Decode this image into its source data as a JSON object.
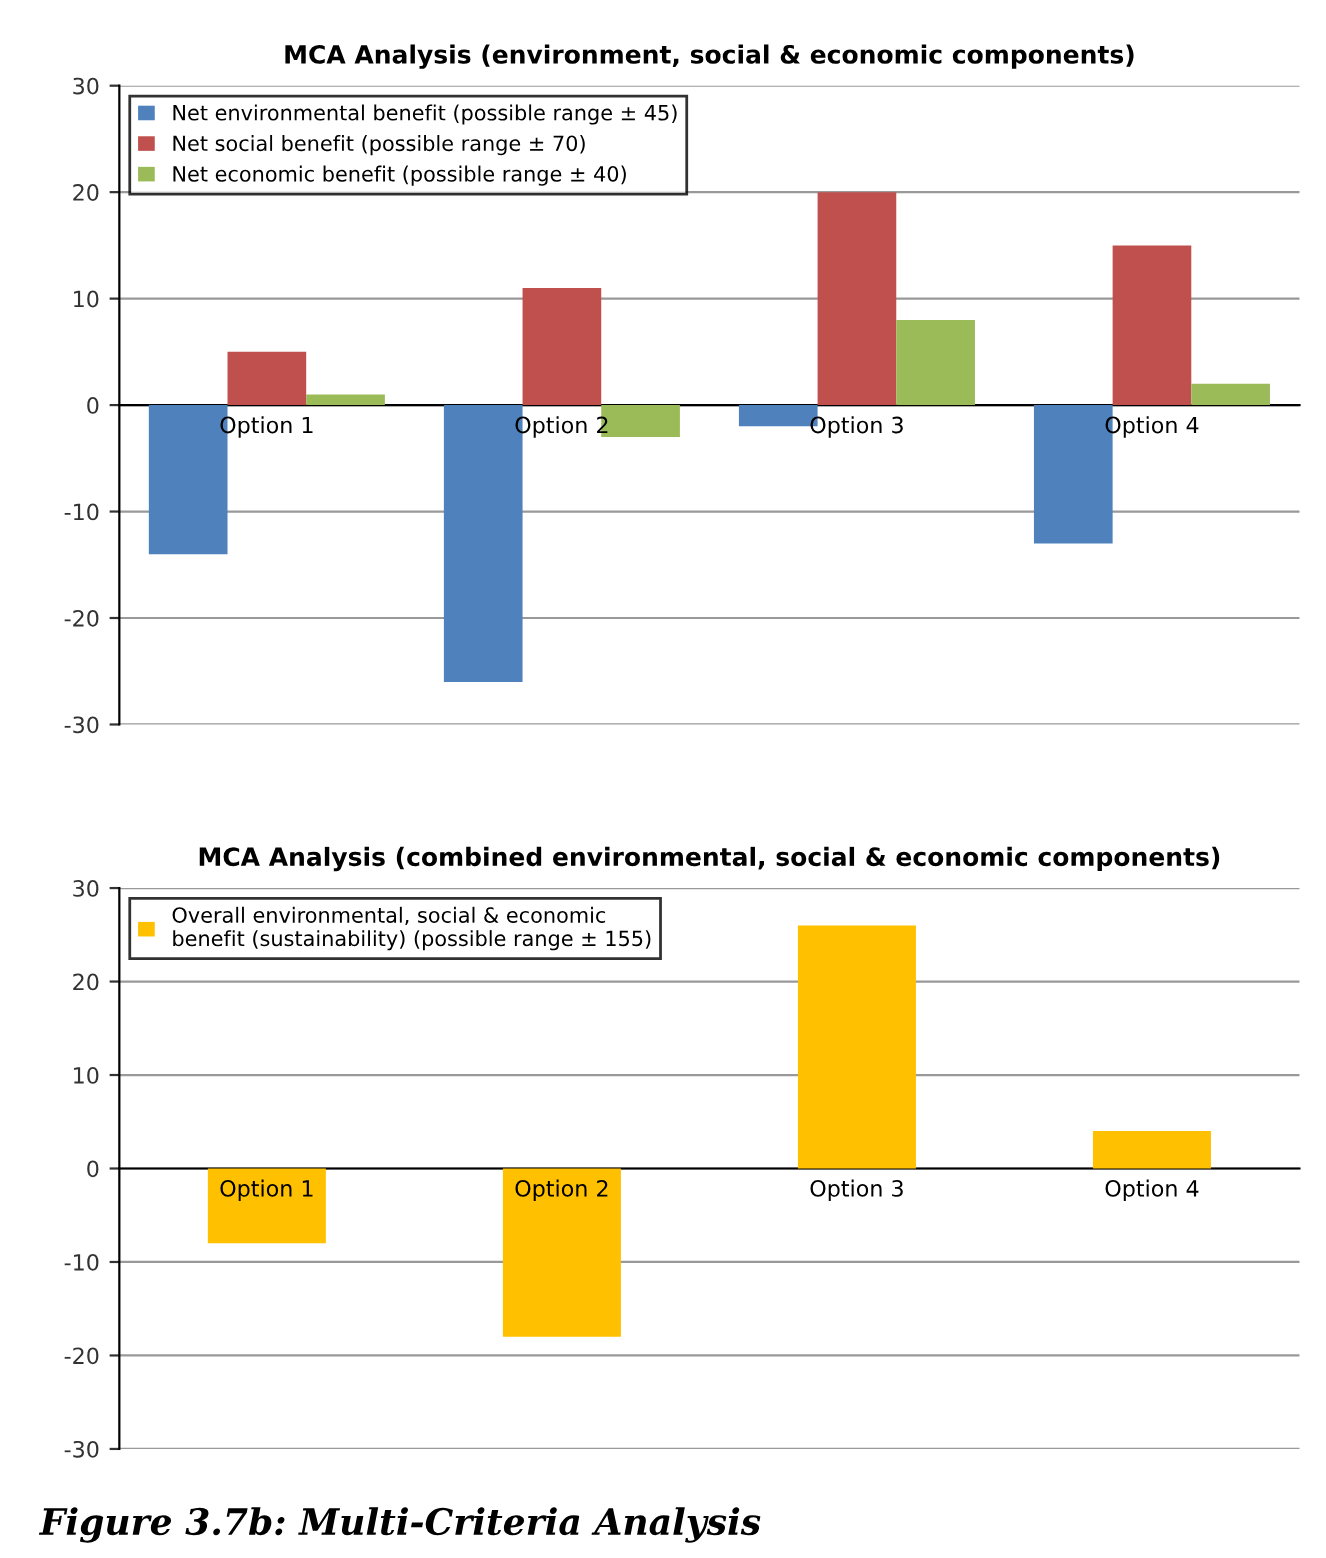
{
  "chart_data": [
    {
      "type": "bar",
      "title": "MCA Analysis (environment, social & economic components)",
      "categories": [
        "Option 1",
        "Option 2",
        "Option 3",
        "Option 4"
      ],
      "series": [
        {
          "name": "Net environmental benefit (possible range ± 45)",
          "color": "#4f81bd",
          "values": [
            -14,
            -26,
            -2,
            -13
          ]
        },
        {
          "name": "Net social benefit (possible range ± 70)",
          "color": "#c0504d",
          "values": [
            5,
            11,
            20,
            15
          ]
        },
        {
          "name": "Net economic benefit (possible range ± 40)",
          "color": "#9bbb59",
          "values": [
            1,
            -3,
            8,
            2
          ]
        }
      ],
      "ylim": [
        -30,
        30
      ],
      "yticks": [
        -30,
        -20,
        -10,
        0,
        10,
        20,
        30
      ],
      "grid": "y",
      "legend": "top left"
    },
    {
      "type": "bar",
      "title": "MCA Analysis (combined environmental, social & economic components)",
      "categories": [
        "Option 1",
        "Option 2",
        "Option 3",
        "Option 4"
      ],
      "series": [
        {
          "name": "Overall environmental, social & economic\nbenefit (sustainability) (possible range ± 155)",
          "color": "#ffc000",
          "values": [
            -8,
            -18,
            26,
            4
          ]
        }
      ],
      "ylim": [
        -30,
        30
      ],
      "yticks": [
        -30,
        -20,
        -10,
        0,
        10,
        20,
        30
      ],
      "grid": "y",
      "legend": "top left",
      "annotations": [
        "Figure 3.7b: Multi-Criteria Analysis"
      ]
    }
  ]
}
